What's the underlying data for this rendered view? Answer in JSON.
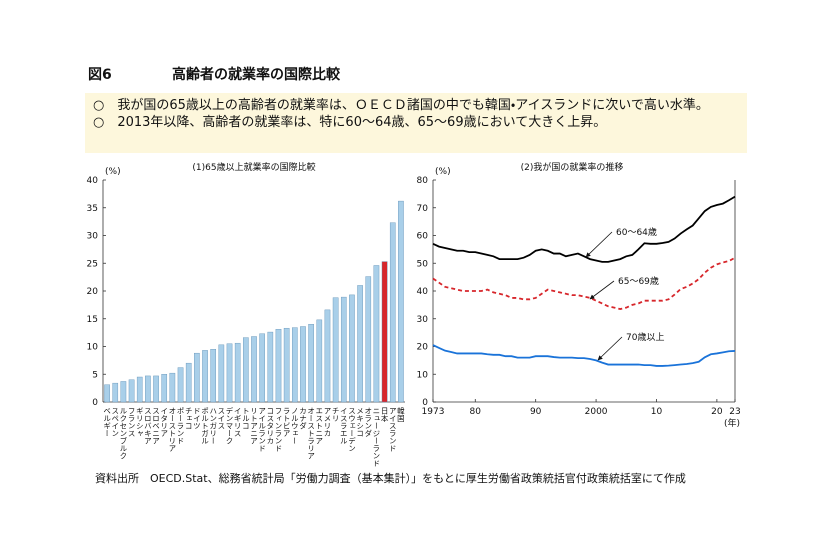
{
  "figure_label": "図6",
  "title": "高齢者の就業率の国際比較",
  "bullets": [
    "○　我が国の65歳以上の高齢者の就業率は、ＯＥＣＤ諸国の中でも韓国・アイスランドに次いで高い水準。",
    "○　2013年以降、高齢者の就業率は、特に60～64歳、65～69歳において大きく上昇。"
  ],
  "source": "資料出所　OECD.Stat、総務省統計局「労働力調査（基本集計）」をもとに厚生労働省政策統括官付政策統括室にて作成",
  "chart_data": [
    {
      "type": "bar",
      "title": "(1)65歳以上就業率の国際比較",
      "ylabel": "(%)",
      "categories": [
        "ベルギー",
        "スペイン",
        "ルクセンブルク",
        "フランス",
        "ギリシャ",
        "スロバキア",
        "スロベニア",
        "イタリア",
        "オーストリア",
        "ポーランド",
        "チェコ",
        "ドイツ",
        "ポルトガル",
        "ハンガリー",
        "スイス",
        "デンマーク",
        "イギリス",
        "トルコ",
        "リトアニア",
        "アイルランド",
        "コスタリカ",
        "フィンランド",
        "ラトビア",
        "ノルウェー",
        "カナダ",
        "オーストラリア",
        "エストニア",
        "アメリカ",
        "チリ",
        "イスラエル",
        "スウェーデン",
        "メキシコ",
        "オランダ",
        "ニュージーランド",
        "日本",
        "アイスランド",
        "韓国"
      ],
      "values": [
        3.1,
        3.4,
        3.7,
        4.0,
        4.5,
        4.7,
        4.7,
        5.0,
        5.2,
        6.2,
        7.0,
        8.8,
        9.3,
        9.5,
        10.3,
        10.5,
        10.6,
        11.6,
        11.8,
        12.3,
        12.6,
        13.1,
        13.3,
        13.4,
        13.6,
        14.0,
        14.8,
        16.6,
        18.8,
        18.9,
        19.3,
        21.0,
        22.6,
        24.6,
        25.3,
        32.3,
        36.2
      ],
      "colors": [
        "#a9cfe9",
        "#a9cfe9",
        "#a9cfe9",
        "#a9cfe9",
        "#a9cfe9",
        "#a9cfe9",
        "#a9cfe9",
        "#a9cfe9",
        "#a9cfe9",
        "#a9cfe9",
        "#a9cfe9",
        "#a9cfe9",
        "#a9cfe9",
        "#a9cfe9",
        "#a9cfe9",
        "#a9cfe9",
        "#a9cfe9",
        "#a9cfe9",
        "#a9cfe9",
        "#a9cfe9",
        "#a9cfe9",
        "#a9cfe9",
        "#a9cfe9",
        "#a9cfe9",
        "#a9cfe9",
        "#a9cfe9",
        "#a9cfe9",
        "#a9cfe9",
        "#a9cfe9",
        "#a9cfe9",
        "#a9cfe9",
        "#a9cfe9",
        "#a9cfe9",
        "#a9cfe9",
        "#d7262b",
        "#a9cfe9",
        "#a9cfe9"
      ],
      "ylim": [
        0,
        40
      ],
      "yticks": [
        0,
        5,
        10,
        15,
        20,
        25,
        30,
        35,
        40
      ],
      "grid": false
    },
    {
      "type": "line",
      "title": "(2)我が国の就業率の推移",
      "ylabel": "(%)",
      "xlabel": "(年)",
      "x": [
        1973,
        1974,
        1975,
        1976,
        1977,
        1978,
        1979,
        1980,
        1981,
        1982,
        1983,
        1984,
        1985,
        1986,
        1987,
        1988,
        1989,
        1990,
        1991,
        1992,
        1993,
        1994,
        1995,
        1996,
        1997,
        1998,
        1999,
        2000,
        2001,
        2002,
        2003,
        2004,
        2005,
        2006,
        2007,
        2008,
        2009,
        2010,
        2011,
        2012,
        2013,
        2014,
        2015,
        2016,
        2017,
        2018,
        2019,
        2020,
        2021,
        2022,
        2023
      ],
      "series": [
        {
          "name": "60～64歳",
          "color": "#000000",
          "dash": false,
          "values": [
            57,
            56,
            55.5,
            55,
            54.5,
            54.5,
            54,
            54,
            53.5,
            53,
            52.5,
            51.5,
            51.5,
            51.5,
            51.5,
            52,
            53,
            54.5,
            55,
            54.5,
            53.5,
            53.5,
            52.5,
            53,
            53.5,
            52.5,
            51.5,
            51,
            50.5,
            50.5,
            51,
            51.5,
            52.5,
            53,
            55,
            57.2,
            57,
            57,
            57.3,
            57.7,
            58.9,
            60.7,
            62.2,
            63.6,
            66.2,
            68.8,
            70.3,
            71,
            71.5,
            72.7,
            74
          ]
        },
        {
          "name": "65～69歳",
          "color": "#d7262b",
          "dash": true,
          "values": [
            44.5,
            43,
            41.5,
            41,
            40.5,
            40,
            40,
            40,
            40,
            40.5,
            39.5,
            39,
            38.5,
            37.5,
            37.5,
            37,
            37,
            37.5,
            39,
            40.5,
            40,
            39.5,
            39,
            38.5,
            38.5,
            38,
            37.5,
            36.5,
            35.5,
            34.5,
            34,
            33.5,
            34,
            35,
            35.5,
            36.5,
            36.5,
            36.5,
            36.5,
            37,
            38.7,
            40.7,
            41.5,
            42.7,
            44.3,
            46.6,
            48.4,
            49.6,
            50.3,
            50.8,
            52
          ]
        },
        {
          "name": "70歳以上",
          "color": "#1a73d9",
          "dash": false,
          "values": [
            20.5,
            19.5,
            18.5,
            18,
            17.5,
            17.5,
            17.5,
            17.5,
            17.5,
            17.2,
            17,
            17,
            16.5,
            16.5,
            16,
            16,
            16,
            16.5,
            16.5,
            16.5,
            16.2,
            16,
            16,
            16,
            15.8,
            15.8,
            15.5,
            15,
            14.2,
            13.5,
            13.5,
            13.5,
            13.5,
            13.5,
            13.5,
            13.3,
            13.3,
            13,
            13,
            13.1,
            13.3,
            13.5,
            13.7,
            14,
            14.5,
            16.1,
            17.2,
            17.5,
            17.9,
            18.3,
            18.4
          ]
        }
      ],
      "xlim": [
        1973,
        2023
      ],
      "xticks": [
        1973,
        {
          "value": 1980,
          "label": "80"
        },
        {
          "value": 1990,
          "label": "90"
        },
        2000,
        {
          "value": 2010,
          "label": "10"
        },
        {
          "value": 2020,
          "label": "20"
        },
        {
          "value": 2023,
          "label": "23"
        }
      ],
      "ylim": [
        0,
        80
      ],
      "yticks": [
        0,
        10,
        20,
        30,
        40,
        50,
        60,
        70,
        80
      ],
      "grid": false
    }
  ]
}
